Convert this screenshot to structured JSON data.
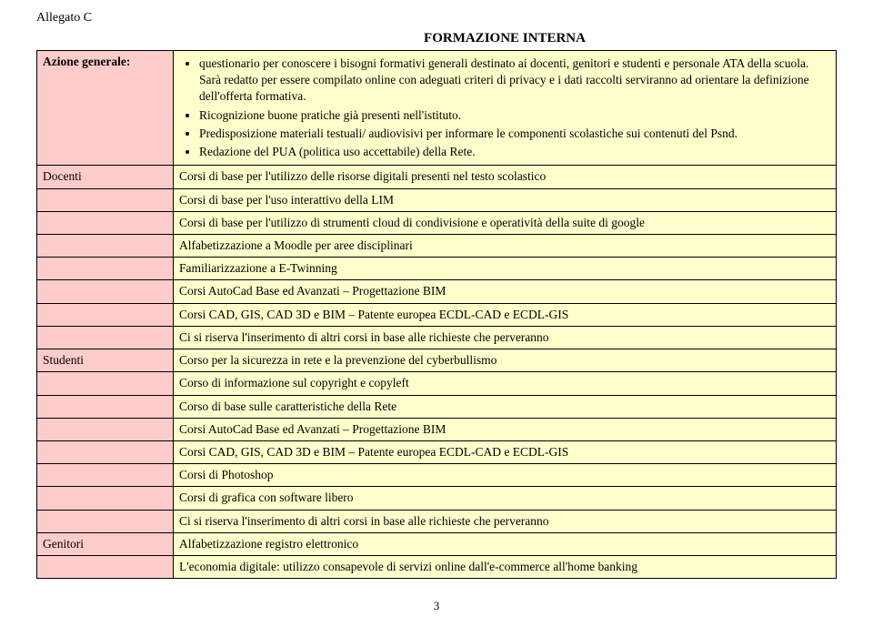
{
  "allegato": "Allegato C",
  "title": "FORMAZIONE INTERNA",
  "azione_label": "Azione generale:",
  "azione_bullets": [
    "questionario per conoscere i bisogni formativi generali destinato ai docenti, genitori e studenti e personale ATA della scuola. Sarà redatto per essere compilato online con adeguati criteri di privacy e i dati raccolti serviranno ad orientare la definizione dell'offerta formativa.",
    "Ricognizione buone pratiche già presenti nell'istituto.",
    "Predisposizione materiali testuali/ audiovisivi per informare le componenti scolastiche sui contenuti del Psnd.",
    "Redazione del PUA (politica uso accettabile) della Rete."
  ],
  "sections": [
    {
      "label": "Docenti",
      "rows": [
        "Corsi di base per l'utilizzo delle risorse digitali presenti nel testo scolastico",
        "Corsi di base per l'uso interattivo della LIM",
        "Corsi di base per l'utilizzo di strumenti cloud di condivisione e operatività della suite di google",
        "Alfabetizzazione a Moodle per aree disciplinari",
        "Familiarizzazione a E-Twinning",
        "Corsi AutoCad Base ed Avanzati – Progettazione BIM",
        "Corsi CAD, GIS, CAD 3D e BIM – Patente europea ECDL-CAD e ECDL-GIS",
        "Ci si riserva l'inserimento di altri corsi in base alle richieste che perveranno"
      ]
    },
    {
      "label": "Studenti",
      "rows": [
        "Corso per la sicurezza in rete e la prevenzione del cyberbullismo",
        "Corso di informazione sul copyright e copyleft",
        "Corso di base sulle caratteristiche della Rete",
        "Corsi AutoCad Base ed Avanzati – Progettazione BIM",
        "Corsi CAD, GIS, CAD 3D e BIM – Patente europea ECDL-CAD e ECDL-GIS",
        "Corsi di Photoshop",
        "Corsi di grafica con software libero",
        "Ci si riserva l'inserimento di altri corsi in base alle richieste che perveranno"
      ]
    },
    {
      "label": "Genitori",
      "rows": [
        "Alfabetizzazione registro elettronico",
        "L'economia digitale: utilizzo consapevole di servizi online dall'e-commerce all'home banking"
      ]
    }
  ],
  "page_number": "3",
  "colors": {
    "label_bg": "#ffcccc",
    "content_bg": "#ffffcc",
    "border": "#000000",
    "text": "#000000",
    "page_bg": "#ffffff"
  }
}
